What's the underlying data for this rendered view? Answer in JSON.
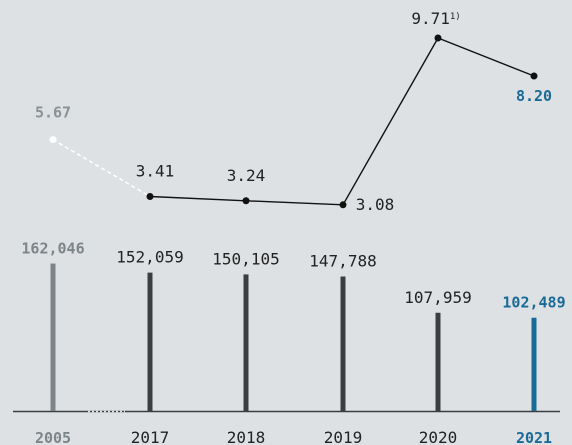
{
  "chart_data": [
    {
      "type": "line",
      "categories": [
        "2005",
        "2017",
        "2018",
        "2019",
        "2020",
        "2021"
      ],
      "values": [
        5.67,
        3.41,
        3.24,
        3.08,
        9.71,
        8.2
      ],
      "labels": [
        "5.67",
        "3.41",
        "3.24",
        "3.08",
        "9.71",
        "8.20"
      ],
      "footnote_mark": "1)",
      "footnote_index": 4,
      "colors": {
        "line": "#111111",
        "base_year": "#ffffff",
        "highlight": "#1a6a97"
      }
    },
    {
      "type": "bar",
      "categories": [
        "2005",
        "2017",
        "2018",
        "2019",
        "2020",
        "2021"
      ],
      "values": [
        162046,
        152059,
        150105,
        147788,
        107959,
        102489
      ],
      "labels": [
        "162,046",
        "152,059",
        "150,105",
        "147,788",
        "107,959",
        "102,489"
      ],
      "colors": {
        "bar": "#3b3e40",
        "base_year": "#7d8588",
        "highlight": "#1a6a97",
        "axis": "#3b3e40"
      }
    }
  ]
}
